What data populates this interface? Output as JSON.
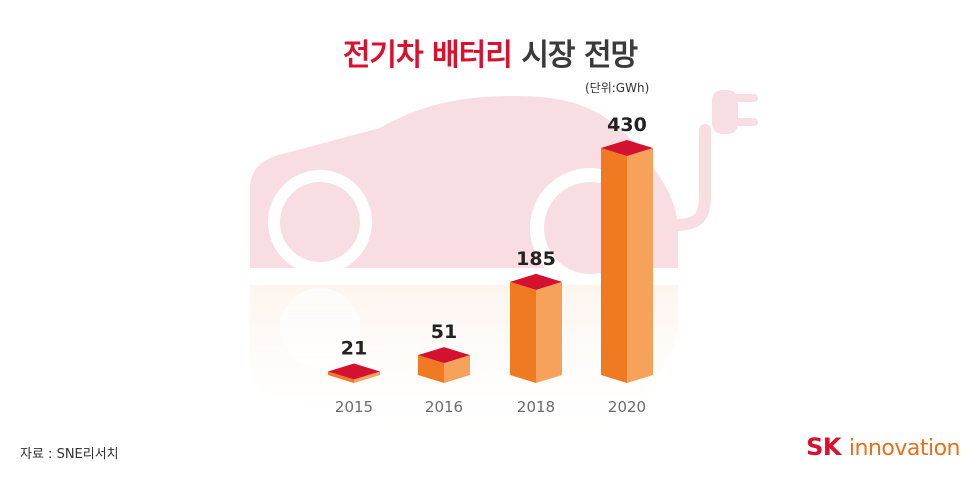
{
  "title": {
    "accent": "전기차 배터리",
    "rest": "시장 전망"
  },
  "unit": "(단위:GWh)",
  "source": "자료 : SNE리서치",
  "logo": {
    "sk": "SK",
    "name": "innovation"
  },
  "colors": {
    "title_accent": "#d9102e",
    "bar_front": "#f07a22",
    "bar_side": "#f7a25a",
    "bar_top": "#d4122f",
    "car_silhouette": "#f8dde2",
    "logo_orange": "#e8701d"
  },
  "chart_data": {
    "type": "bar",
    "categories": [
      "2015",
      "2016",
      "2018",
      "2020"
    ],
    "values": [
      21,
      51,
      185,
      430
    ],
    "title": "전기차 배터리 시장 전망",
    "ylabel": "",
    "unit": "GWh",
    "ylim": [
      0,
      430
    ],
    "grid": false,
    "legend": "none"
  }
}
